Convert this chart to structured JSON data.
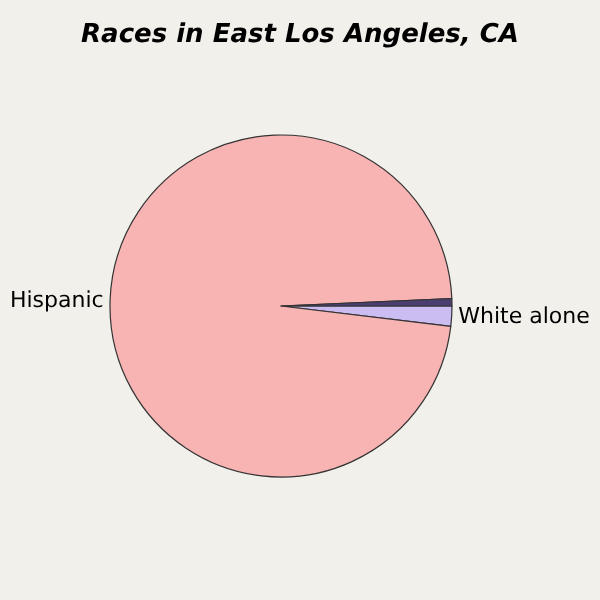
{
  "chart_data": {
    "type": "pie",
    "title": "Races in East Los Angeles, CA",
    "categories": [
      "White alone",
      "Hispanic",
      null
    ],
    "values": [
      1.9,
      97.4,
      0.7
    ],
    "colors": [
      "#cbbcf2",
      "#f8b3b3",
      "#4a3f70"
    ],
    "legend": false
  }
}
